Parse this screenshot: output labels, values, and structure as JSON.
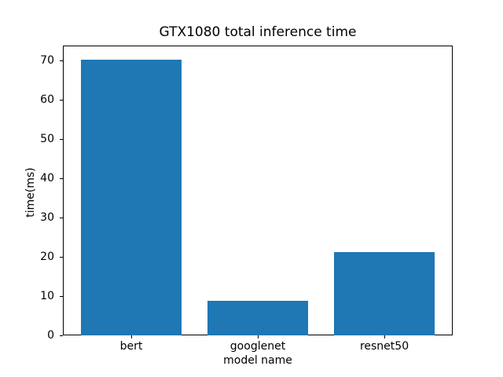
{
  "chart_data": {
    "type": "bar",
    "title": "GTX1080 total inference time",
    "xlabel": "model name",
    "ylabel": "time(ms)",
    "categories": [
      "bert",
      "googlenet",
      "resnet50"
    ],
    "values": [
      70.3,
      8.9,
      21.2
    ],
    "bar_color": "#1f77b4",
    "ylim": [
      0,
      73.8
    ],
    "yticks": [
      0,
      10,
      20,
      30,
      40,
      50,
      60,
      70
    ],
    "grid": false,
    "legend_position": "none"
  }
}
